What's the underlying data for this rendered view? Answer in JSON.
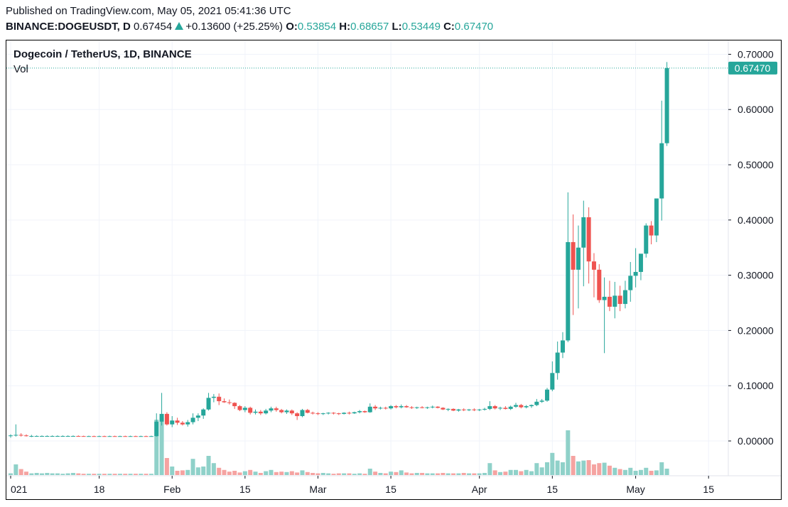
{
  "header": {
    "published": "Published on TradingView.com, May 05, 2021 05:41:36 UTC",
    "symbol": "BINANCE:DOGEUSDT, D",
    "last_price": "0.67454",
    "change": "+0.13600 (+25.25%)",
    "open_label": "O:",
    "open": "0.53854",
    "high_label": "H:",
    "high": "0.68657",
    "low_label": "L:",
    "low": "0.53449",
    "close_label": "C:",
    "close": "0.67470"
  },
  "legend": {
    "title": "Dogecoin / TetherUS, 1D, BINANCE",
    "volume_label": "Vol"
  },
  "price_badge": "0.67470",
  "colors": {
    "up": "#26a69a",
    "down": "#ef5350",
    "vol_up": "#8fd1c9",
    "vol_down": "#f5a3a1",
    "grid": "#f0f3fa"
  },
  "chart_data": {
    "type": "candlestick",
    "title": "Dogecoin / TetherUS, 1D, BINANCE",
    "y_ticks": [
      "0.70000",
      "0.60000",
      "0.50000",
      "0.40000",
      "0.30000",
      "0.20000",
      "0.10000",
      "0.00000"
    ],
    "ylim": [
      -0.063,
      0.725
    ],
    "x_tick_labels": [
      {
        "day": 0,
        "label": "021"
      },
      {
        "day": 17,
        "label": "18"
      },
      {
        "day": 31,
        "label": "Feb"
      },
      {
        "day": 45,
        "label": "15"
      },
      {
        "day": 59,
        "label": "Mar"
      },
      {
        "day": 73,
        "label": "15"
      },
      {
        "day": 90,
        "label": "Apr"
      },
      {
        "day": 104,
        "label": "15"
      },
      {
        "day": 120,
        "label": "May"
      },
      {
        "day": 134,
        "label": "15"
      }
    ],
    "candles": [
      [
        0.009,
        0.012,
        0.006,
        0.01,
        4
      ],
      [
        0.01,
        0.03,
        0.008,
        0.011,
        25
      ],
      [
        0.011,
        0.014,
        0.008,
        0.01,
        14
      ],
      [
        0.01,
        0.012,
        0.008,
        0.009,
        8
      ],
      [
        0.009,
        0.011,
        0.007,
        0.009,
        4
      ],
      [
        0.009,
        0.01,
        0.008,
        0.009,
        5
      ],
      [
        0.009,
        0.01,
        0.008,
        0.009,
        4
      ],
      [
        0.009,
        0.01,
        0.008,
        0.009,
        5
      ],
      [
        0.009,
        0.01,
        0.008,
        0.009,
        4
      ],
      [
        0.009,
        0.01,
        0.008,
        0.009,
        4
      ],
      [
        0.009,
        0.01,
        0.008,
        0.009,
        3
      ],
      [
        0.009,
        0.01,
        0.008,
        0.009,
        4
      ],
      [
        0.009,
        0.01,
        0.008,
        0.009,
        5
      ],
      [
        0.009,
        0.01,
        0.008,
        0.0088,
        4
      ],
      [
        0.0088,
        0.0095,
        0.008,
        0.0085,
        3
      ],
      [
        0.0085,
        0.0095,
        0.008,
        0.0087,
        3
      ],
      [
        0.0087,
        0.0095,
        0.008,
        0.0085,
        3
      ],
      [
        0.0085,
        0.0095,
        0.008,
        0.0087,
        3
      ],
      [
        0.0087,
        0.0095,
        0.008,
        0.0085,
        3
      ],
      [
        0.0085,
        0.0095,
        0.008,
        0.0087,
        3
      ],
      [
        0.0087,
        0.0095,
        0.008,
        0.0085,
        3
      ],
      [
        0.0085,
        0.0095,
        0.008,
        0.0087,
        3
      ],
      [
        0.0087,
        0.0095,
        0.008,
        0.0085,
        3
      ],
      [
        0.0085,
        0.0095,
        0.008,
        0.0087,
        3
      ],
      [
        0.0087,
        0.0095,
        0.008,
        0.0085,
        3
      ],
      [
        0.0085,
        0.0095,
        0.008,
        0.0087,
        3
      ],
      [
        0.0087,
        0.0095,
        0.008,
        0.0085,
        3
      ],
      [
        0.0085,
        0.0095,
        0.008,
        0.0087,
        3
      ],
      [
        0.0087,
        0.05,
        0.008,
        0.035,
        130
      ],
      [
        0.035,
        0.087,
        0.028,
        0.049,
        135
      ],
      [
        0.049,
        0.052,
        0.028,
        0.03,
        40
      ],
      [
        0.03,
        0.045,
        0.025,
        0.037,
        20
      ],
      [
        0.037,
        0.042,
        0.029,
        0.033,
        10
      ],
      [
        0.033,
        0.036,
        0.028,
        0.03,
        11
      ],
      [
        0.03,
        0.038,
        0.026,
        0.034,
        12
      ],
      [
        0.034,
        0.05,
        0.03,
        0.042,
        38
      ],
      [
        0.042,
        0.05,
        0.036,
        0.046,
        18
      ],
      [
        0.046,
        0.059,
        0.04,
        0.057,
        20
      ],
      [
        0.057,
        0.087,
        0.055,
        0.078,
        45
      ],
      [
        0.078,
        0.085,
        0.07,
        0.08,
        28
      ],
      [
        0.08,
        0.086,
        0.065,
        0.072,
        17
      ],
      [
        0.072,
        0.077,
        0.069,
        0.07,
        12
      ],
      [
        0.07,
        0.075,
        0.066,
        0.069,
        8
      ],
      [
        0.069,
        0.07,
        0.058,
        0.063,
        10
      ],
      [
        0.063,
        0.065,
        0.054,
        0.056,
        6
      ],
      [
        0.056,
        0.063,
        0.052,
        0.06,
        9
      ],
      [
        0.06,
        0.062,
        0.048,
        0.051,
        12
      ],
      [
        0.051,
        0.057,
        0.048,
        0.053,
        8
      ],
      [
        0.053,
        0.056,
        0.047,
        0.05,
        5
      ],
      [
        0.05,
        0.058,
        0.048,
        0.055,
        9
      ],
      [
        0.055,
        0.062,
        0.052,
        0.059,
        12
      ],
      [
        0.059,
        0.062,
        0.053,
        0.056,
        7
      ],
      [
        0.056,
        0.058,
        0.05,
        0.052,
        8
      ],
      [
        0.052,
        0.057,
        0.049,
        0.055,
        7
      ],
      [
        0.055,
        0.057,
        0.047,
        0.05,
        9
      ],
      [
        0.05,
        0.052,
        0.038,
        0.045,
        6
      ],
      [
        0.045,
        0.058,
        0.043,
        0.056,
        11
      ],
      [
        0.056,
        0.058,
        0.05,
        0.051,
        7
      ],
      [
        0.051,
        0.053,
        0.048,
        0.05,
        5
      ],
      [
        0.05,
        0.052,
        0.047,
        0.049,
        4
      ],
      [
        0.049,
        0.051,
        0.047,
        0.05,
        5
      ],
      [
        0.05,
        0.052,
        0.048,
        0.051,
        4
      ],
      [
        0.051,
        0.052,
        0.048,
        0.05,
        3
      ],
      [
        0.05,
        0.051,
        0.047,
        0.049,
        4
      ],
      [
        0.049,
        0.052,
        0.048,
        0.051,
        4
      ],
      [
        0.051,
        0.053,
        0.048,
        0.05,
        4
      ],
      [
        0.05,
        0.053,
        0.049,
        0.052,
        3
      ],
      [
        0.052,
        0.056,
        0.05,
        0.054,
        4
      ],
      [
        0.054,
        0.055,
        0.051,
        0.052,
        3
      ],
      [
        0.052,
        0.068,
        0.051,
        0.062,
        15
      ],
      [
        0.062,
        0.065,
        0.056,
        0.059,
        8
      ],
      [
        0.059,
        0.062,
        0.057,
        0.06,
        5
      ],
      [
        0.06,
        0.062,
        0.057,
        0.059,
        4
      ],
      [
        0.059,
        0.065,
        0.057,
        0.063,
        8
      ],
      [
        0.063,
        0.065,
        0.059,
        0.061,
        7
      ],
      [
        0.061,
        0.066,
        0.059,
        0.063,
        11
      ],
      [
        0.063,
        0.065,
        0.06,
        0.061,
        6
      ],
      [
        0.061,
        0.063,
        0.058,
        0.06,
        4
      ],
      [
        0.06,
        0.062,
        0.058,
        0.061,
        5
      ],
      [
        0.061,
        0.063,
        0.059,
        0.06,
        5
      ],
      [
        0.06,
        0.062,
        0.058,
        0.061,
        4
      ],
      [
        0.061,
        0.064,
        0.059,
        0.062,
        4
      ],
      [
        0.062,
        0.063,
        0.059,
        0.06,
        4
      ],
      [
        0.06,
        0.061,
        0.056,
        0.057,
        5
      ],
      [
        0.057,
        0.059,
        0.054,
        0.058,
        4
      ],
      [
        0.058,
        0.059,
        0.054,
        0.055,
        4
      ],
      [
        0.055,
        0.058,
        0.053,
        0.057,
        4
      ],
      [
        0.057,
        0.059,
        0.054,
        0.056,
        5
      ],
      [
        0.056,
        0.058,
        0.054,
        0.057,
        4
      ],
      [
        0.057,
        0.059,
        0.054,
        0.056,
        4
      ],
      [
        0.056,
        0.058,
        0.054,
        0.057,
        4
      ],
      [
        0.057,
        0.06,
        0.055,
        0.058,
        5
      ],
      [
        0.058,
        0.072,
        0.056,
        0.063,
        28
      ],
      [
        0.063,
        0.065,
        0.057,
        0.059,
        11
      ],
      [
        0.059,
        0.062,
        0.056,
        0.06,
        7
      ],
      [
        0.06,
        0.063,
        0.057,
        0.058,
        8
      ],
      [
        0.058,
        0.064,
        0.056,
        0.062,
        12
      ],
      [
        0.062,
        0.069,
        0.06,
        0.065,
        12
      ],
      [
        0.065,
        0.067,
        0.059,
        0.061,
        9
      ],
      [
        0.061,
        0.065,
        0.059,
        0.063,
        12
      ],
      [
        0.063,
        0.066,
        0.06,
        0.065,
        9
      ],
      [
        0.065,
        0.076,
        0.063,
        0.071,
        28
      ],
      [
        0.071,
        0.076,
        0.069,
        0.073,
        18
      ],
      [
        0.073,
        0.096,
        0.071,
        0.093,
        30
      ],
      [
        0.093,
        0.144,
        0.09,
        0.123,
        52
      ],
      [
        0.123,
        0.18,
        0.111,
        0.16,
        34
      ],
      [
        0.16,
        0.197,
        0.15,
        0.182,
        30
      ],
      [
        0.182,
        0.45,
        0.179,
        0.36,
        105
      ],
      [
        0.36,
        0.41,
        0.228,
        0.31,
        45
      ],
      [
        0.31,
        0.39,
        0.24,
        0.35,
        32
      ],
      [
        0.35,
        0.435,
        0.28,
        0.405,
        34
      ],
      [
        0.405,
        0.423,
        0.285,
        0.325,
        35
      ],
      [
        0.325,
        0.34,
        0.26,
        0.31,
        25
      ],
      [
        0.31,
        0.32,
        0.25,
        0.255,
        28
      ],
      [
        0.255,
        0.296,
        0.159,
        0.261,
        29
      ],
      [
        0.261,
        0.29,
        0.235,
        0.243,
        22
      ],
      [
        0.243,
        0.288,
        0.222,
        0.263,
        17
      ],
      [
        0.263,
        0.281,
        0.235,
        0.248,
        14
      ],
      [
        0.248,
        0.29,
        0.24,
        0.273,
        12
      ],
      [
        0.273,
        0.324,
        0.252,
        0.299,
        17
      ],
      [
        0.299,
        0.349,
        0.278,
        0.306,
        10
      ],
      [
        0.306,
        0.336,
        0.291,
        0.339,
        12
      ],
      [
        0.339,
        0.394,
        0.332,
        0.39,
        17
      ],
      [
        0.39,
        0.398,
        0.356,
        0.372,
        10
      ],
      [
        0.372,
        0.438,
        0.36,
        0.439,
        11
      ],
      [
        0.439,
        0.616,
        0.399,
        0.539,
        30
      ],
      [
        0.539,
        0.686,
        0.534,
        0.675,
        15
      ]
    ]
  }
}
